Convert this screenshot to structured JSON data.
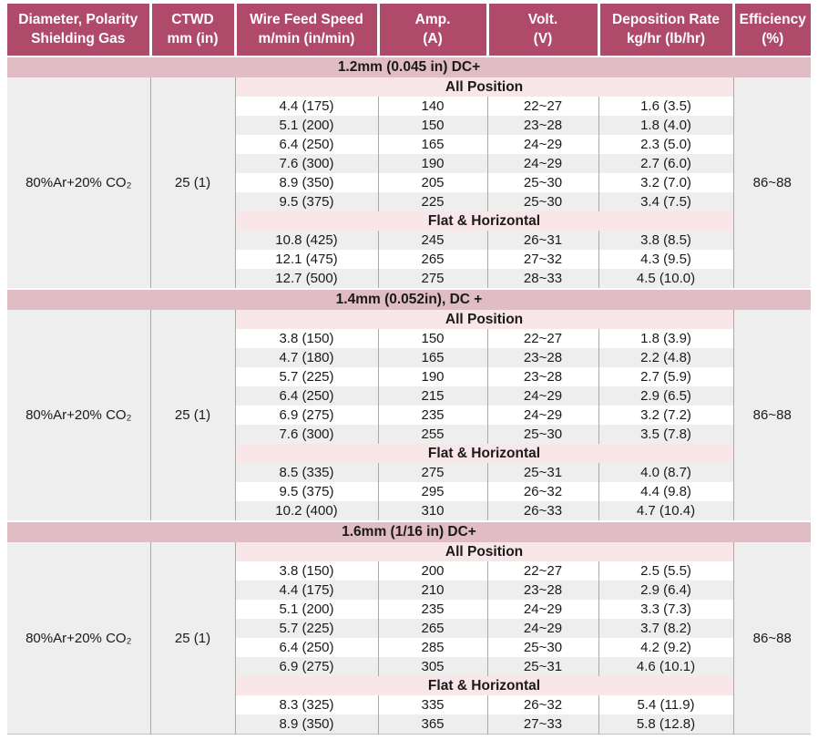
{
  "colors": {
    "header_bg": "#b04a6a",
    "section_band_bg": "#e0bcc4",
    "subsection_band_bg": "#f8e6e9",
    "row_shade": "#eeeeee",
    "divider": "#a9a9a9",
    "header_text": "#ffffff",
    "body_text": "#1a1a1a"
  },
  "table": {
    "columns": [
      {
        "line1": "Diameter, Polarity",
        "line2": "Shielding Gas"
      },
      {
        "line1": "CTWD",
        "line2": "mm (in)"
      },
      {
        "line1": "Wire Feed Speed",
        "line2": "m/min (in/min)"
      },
      {
        "line1": "Amp.",
        "line2": "(A)"
      },
      {
        "line1": "Volt.",
        "line2": "(V)"
      },
      {
        "line1": "Deposition Rate",
        "line2": "kg/hr (lb/hr)"
      },
      {
        "line1": "Efficiency",
        "line2": "(%)"
      }
    ],
    "sections": [
      {
        "title": "1.2mm (0.045 in) DC+",
        "shielding_gas": "80%Ar+20% CO₂",
        "ctwd": "25 (1)",
        "efficiency": "86~88",
        "groups": [
          {
            "position": "All Position",
            "rows": [
              [
                "4.4 (175)",
                "140",
                "22~27",
                "1.6 (3.5)"
              ],
              [
                "5.1 (200)",
                "150",
                "23~28",
                "1.8 (4.0)"
              ],
              [
                "6.4 (250)",
                "165",
                "24~29",
                "2.3 (5.0)"
              ],
              [
                "7.6 (300)",
                "190",
                "24~29",
                "2.7 (6.0)"
              ],
              [
                "8.9 (350)",
                "205",
                "25~30",
                "3.2 (7.0)"
              ],
              [
                "9.5 (375)",
                "225",
                "25~30",
                "3.4 (7.5)"
              ]
            ]
          },
          {
            "position": "Flat & Horizontal",
            "rows": [
              [
                "10.8 (425)",
                "245",
                "26~31",
                "3.8 (8.5)"
              ],
              [
                "12.1 (475)",
                "265",
                "27~32",
                "4.3 (9.5)"
              ],
              [
                "12.7 (500)",
                "275",
                "28~33",
                "4.5 (10.0)"
              ]
            ]
          }
        ]
      },
      {
        "title": "1.4mm (0.052in), DC +",
        "shielding_gas": "80%Ar+20% CO₂",
        "ctwd": "25 (1)",
        "efficiency": "86~88",
        "groups": [
          {
            "position": "All Position",
            "rows": [
              [
                "3.8 (150)",
                "150",
                "22~27",
                "1.8 (3.9)"
              ],
              [
                "4.7 (180)",
                "165",
                "23~28",
                "2.2 (4.8)"
              ],
              [
                "5.7 (225)",
                "190",
                "23~28",
                "2.7 (5.9)"
              ],
              [
                "6.4 (250)",
                "215",
                "24~29",
                "2.9 (6.5)"
              ],
              [
                "6.9 (275)",
                "235",
                "24~29",
                "3.2 (7.2)"
              ],
              [
                "7.6 (300)",
                "255",
                "25~30",
                "3.5 (7.8)"
              ]
            ]
          },
          {
            "position": "Flat & Horizontal",
            "rows": [
              [
                "8.5 (335)",
                "275",
                "25~31",
                "4.0 (8.7)"
              ],
              [
                "9.5 (375)",
                "295",
                "26~32",
                "4.4 (9.8)"
              ],
              [
                "10.2 (400)",
                "310",
                "26~33",
                "4.7 (10.4)"
              ]
            ]
          }
        ]
      },
      {
        "title": "1.6mm (1/16 in) DC+",
        "shielding_gas": "80%Ar+20% CO₂",
        "ctwd": "25 (1)",
        "efficiency": "86~88",
        "groups": [
          {
            "position": "All Position",
            "rows": [
              [
                "3.8 (150)",
                "200",
                "22~27",
                "2.5 (5.5)"
              ],
              [
                "4.4 (175)",
                "210",
                "23~28",
                "2.9 (6.4)"
              ],
              [
                "5.1 (200)",
                "235",
                "24~29",
                "3.3 (7.3)"
              ],
              [
                "5.7 (225)",
                "265",
                "24~29",
                "3.7 (8.2)"
              ],
              [
                "6.4 (250)",
                "285",
                "25~30",
                "4.2 (9.2)"
              ],
              [
                "6.9 (275)",
                "305",
                "25~31",
                "4.6 (10.1)"
              ]
            ]
          },
          {
            "position": "Flat & Horizontal",
            "rows": [
              [
                "8.3 (325)",
                "335",
                "26~32",
                "5.4 (11.9)"
              ],
              [
                "8.9 (350)",
                "365",
                "27~33",
                "5.8 (12.8)"
              ]
            ]
          }
        ]
      }
    ]
  }
}
